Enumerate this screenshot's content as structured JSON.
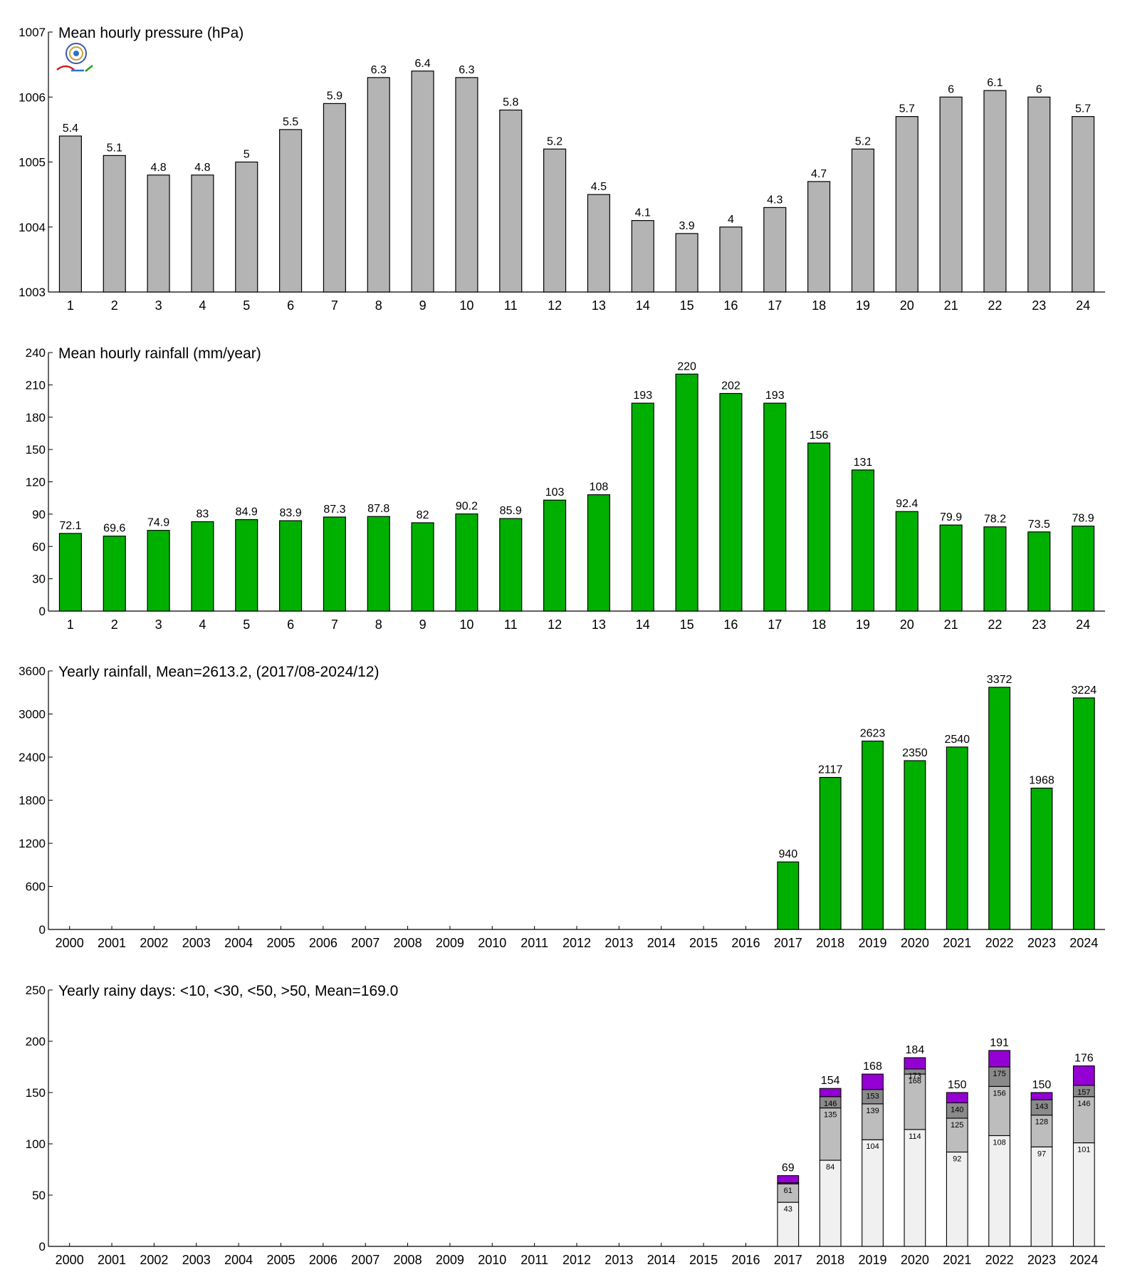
{
  "chart_data": [
    {
      "id": "pressure",
      "type": "bar",
      "title": "Mean hourly pressure (hPa)",
      "xlabel": "",
      "ylabel": "",
      "categories": [
        "1",
        "2",
        "3",
        "4",
        "5",
        "6",
        "7",
        "8",
        "9",
        "10",
        "11",
        "12",
        "13",
        "14",
        "15",
        "16",
        "17",
        "18",
        "19",
        "20",
        "21",
        "22",
        "23",
        "24"
      ],
      "values": [
        1005.4,
        1005.1,
        1004.8,
        1004.8,
        1005.0,
        1005.5,
        1005.9,
        1006.3,
        1006.4,
        1006.3,
        1005.8,
        1005.2,
        1004.5,
        1004.1,
        1003.9,
        1004.0,
        1004.3,
        1004.7,
        1005.2,
        1005.7,
        1006.0,
        1006.1,
        1006.0,
        1005.7
      ],
      "labels": [
        "5.4",
        "5.1",
        "4.8",
        "4.8",
        "5",
        "5.5",
        "5.9",
        "6.3",
        "6.4",
        "6.3",
        "5.8",
        "5.2",
        "4.5",
        "4.1",
        "3.9",
        "4",
        "4.3",
        "4.7",
        "5.2",
        "5.7",
        "6",
        "6.1",
        "6",
        "5.7"
      ],
      "ylim": [
        1003,
        1007
      ],
      "yticks": [
        "1003",
        "1004",
        "1005",
        "1006",
        "1007"
      ],
      "bar_color": "#b4b4b4",
      "grid": false
    },
    {
      "id": "hourly-rain",
      "type": "bar",
      "title": "Mean hourly rainfall (mm/year)",
      "xlabel": "",
      "ylabel": "",
      "categories": [
        "1",
        "2",
        "3",
        "4",
        "5",
        "6",
        "7",
        "8",
        "9",
        "10",
        "11",
        "12",
        "13",
        "14",
        "15",
        "16",
        "17",
        "18",
        "19",
        "20",
        "21",
        "22",
        "23",
        "24"
      ],
      "values": [
        72.1,
        69.6,
        74.9,
        83,
        84.9,
        83.9,
        87.3,
        87.8,
        82,
        90.2,
        85.9,
        103,
        108,
        193,
        220,
        202,
        193,
        156,
        131,
        92.4,
        79.9,
        78.2,
        73.5,
        78.9
      ],
      "labels": [
        "72.1",
        "69.6",
        "74.9",
        "83",
        "84.9",
        "83.9",
        "87.3",
        "87.8",
        "82",
        "90.2",
        "85.9",
        "103",
        "108",
        "193",
        "220",
        "202",
        "193",
        "156",
        "131",
        "92.4",
        "79.9",
        "78.2",
        "73.5",
        "78.9"
      ],
      "ylim": [
        0,
        240
      ],
      "yticks": [
        "0",
        "30",
        "60",
        "90",
        "120",
        "150",
        "180",
        "210",
        "240"
      ],
      "bar_color": "#00b000",
      "grid": false
    },
    {
      "id": "yearly-rain",
      "type": "bar",
      "title": "Yearly rainfall, Mean=2613.2, (2017/08-2024/12)",
      "xlabel": "",
      "ylabel": "",
      "categories": [
        "2000",
        "2001",
        "2002",
        "2003",
        "2004",
        "2005",
        "2006",
        "2007",
        "2008",
        "2009",
        "2010",
        "2011",
        "2012",
        "2013",
        "2014",
        "2015",
        "2016",
        "2017",
        "2018",
        "2019",
        "2020",
        "2021",
        "2022",
        "2023",
        "2024"
      ],
      "values": [
        null,
        null,
        null,
        null,
        null,
        null,
        null,
        null,
        null,
        null,
        null,
        null,
        null,
        null,
        null,
        null,
        null,
        940,
        2117,
        2623,
        2350,
        2540,
        3372,
        1968,
        3224
      ],
      "labels": [
        "",
        "",
        "",
        "",
        "",
        "",
        "",
        "",
        "",
        "",
        "",
        "",
        "",
        "",
        "",
        "",
        "",
        "940",
        "2117",
        "2623",
        "2350",
        "2540",
        "3372",
        "1968",
        "3224"
      ],
      "ylim": [
        0,
        3600
      ],
      "yticks": [
        "0",
        "600",
        "1200",
        "1800",
        "2400",
        "3000",
        "3600"
      ],
      "bar_color": "#00b000",
      "grid": false
    },
    {
      "id": "rainy-days",
      "type": "stacked-bar",
      "title": "Yearly rainy days: <10, <30, <50, >50, Mean=169.0",
      "xlabel": "",
      "ylabel": "",
      "categories": [
        "2000",
        "2001",
        "2002",
        "2003",
        "2004",
        "2005",
        "2006",
        "2007",
        "2008",
        "2009",
        "2010",
        "2011",
        "2012",
        "2013",
        "2014",
        "2015",
        "2016",
        "2017",
        "2018",
        "2019",
        "2020",
        "2021",
        "2022",
        "2023",
        "2024"
      ],
      "cumulative": {
        "lt10": [
          null,
          null,
          null,
          null,
          null,
          null,
          null,
          null,
          null,
          null,
          null,
          null,
          null,
          null,
          null,
          null,
          null,
          43,
          84,
          104,
          114,
          92,
          108,
          97,
          101
        ],
        "lt30": [
          null,
          null,
          null,
          null,
          null,
          null,
          null,
          null,
          null,
          null,
          null,
          null,
          null,
          null,
          null,
          null,
          null,
          61,
          135,
          139,
          168,
          125,
          156,
          128,
          146
        ],
        "lt50": [
          null,
          null,
          null,
          null,
          null,
          null,
          null,
          null,
          null,
          null,
          null,
          null,
          null,
          null,
          null,
          null,
          null,
          62,
          146,
          153,
          173,
          140,
          175,
          143,
          157
        ],
        "total": [
          null,
          null,
          null,
          null,
          null,
          null,
          null,
          null,
          null,
          null,
          null,
          null,
          null,
          null,
          null,
          null,
          null,
          69,
          154,
          168,
          184,
          150,
          191,
          150,
          176
        ]
      },
      "segment_labels": {
        "lt10": [
          "",
          "",
          "",
          "",
          "",
          "",
          "",
          "",
          "",
          "",
          "",
          "",
          "",
          "",
          "",
          "",
          "",
          "43",
          "84",
          "104",
          "114",
          "92",
          "108",
          "97",
          "101"
        ],
        "lt30": [
          "",
          "",
          "",
          "",
          "",
          "",
          "",
          "",
          "",
          "",
          "",
          "",
          "",
          "",
          "",
          "",
          "",
          "61",
          "135",
          "139",
          "168",
          "125",
          "156",
          "128",
          "146"
        ],
        "lt50": [
          "",
          "",
          "",
          "",
          "",
          "",
          "",
          "",
          "",
          "",
          "",
          "",
          "",
          "",
          "",
          "",
          "",
          "",
          "146",
          "153",
          "173",
          "140",
          "175",
          "143",
          "157"
        ],
        "total": [
          "",
          "",
          "",
          "",
          "",
          "",
          "",
          "",
          "",
          "",
          "",
          "",
          "",
          "",
          "",
          "",
          "",
          "69",
          "154",
          "168",
          "184",
          "150",
          "191",
          "150",
          "176"
        ]
      },
      "colors": {
        "lt10": "#f0f0f0",
        "lt30": "#bdbdbd",
        "lt50": "#8a8a8a",
        "gt50": "#9400d3"
      },
      "ylim": [
        0,
        250
      ],
      "yticks": [
        "0",
        "50",
        "100",
        "150",
        "200",
        "250"
      ],
      "grid": false
    }
  ]
}
